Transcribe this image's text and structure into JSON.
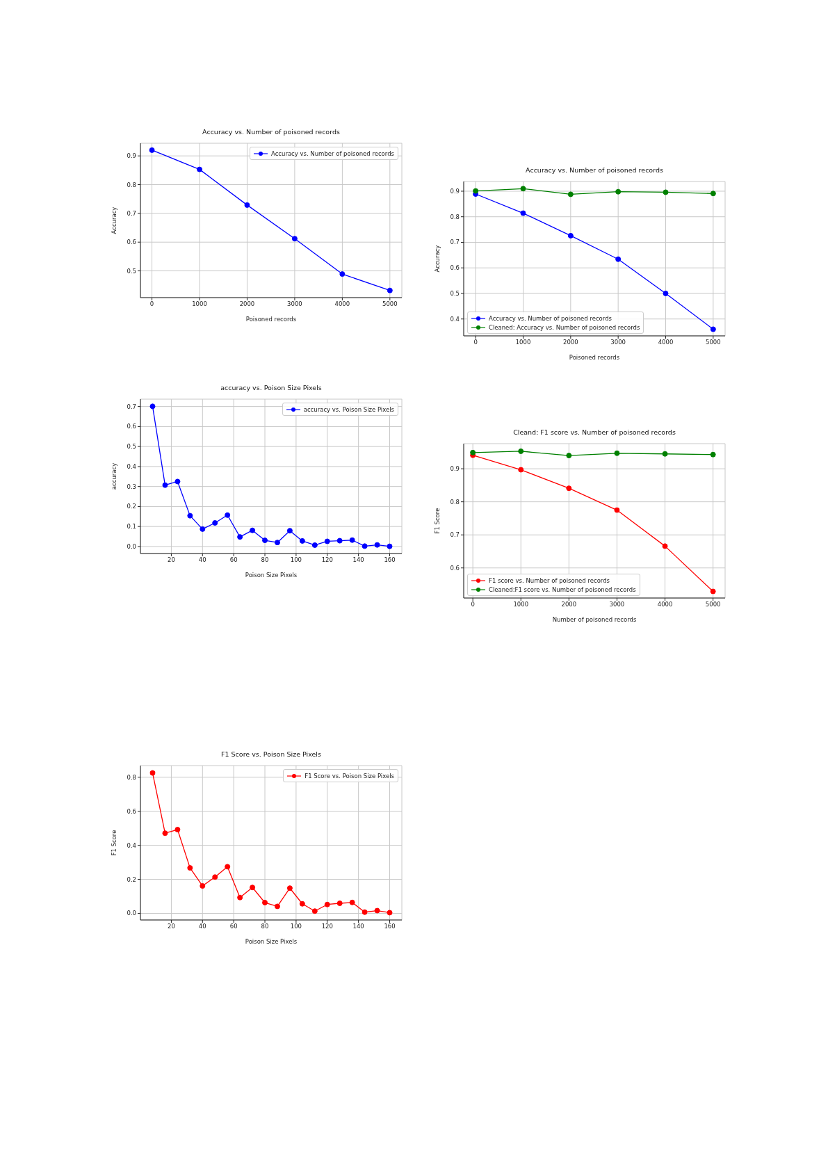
{
  "chart_data": [
    {
      "type": "line",
      "title": "Accuracy vs. Number of poisoned records",
      "xlabel": "Poisoned records",
      "ylabel": "Accuracy",
      "x": [
        0,
        1000,
        2000,
        3000,
        4000,
        5000
      ],
      "series": [
        {
          "name": "Accuracy vs. Number of poisoned records",
          "color": "#0000ff",
          "values": [
            0.92,
            0.853,
            0.729,
            0.612,
            0.489,
            0.432
          ]
        }
      ],
      "xlim": [
        -242,
        5251
      ],
      "xticks": [
        0,
        1000,
        2000,
        3000,
        4000,
        5000
      ],
      "ylim": [
        0.407,
        0.944
      ],
      "yticks": [
        0.5,
        0.6,
        0.7,
        0.8,
        0.9
      ],
      "grid": true,
      "legend": "top right",
      "marker": "circle"
    },
    {
      "type": "line",
      "title": "Accuracy vs. Number of poisoned records",
      "xlabel": "Poisoned records",
      "ylabel": "Accuracy",
      "x": [
        0,
        1000,
        2000,
        3000,
        4000,
        5000
      ],
      "series": [
        {
          "name": "Accuracy vs. Number of poisoned records",
          "color": "#0000ff",
          "values": [
            0.889,
            0.814,
            0.726,
            0.634,
            0.5,
            0.36
          ]
        },
        {
          "name": "Cleaned: Accuracy vs. Number of poisoned records",
          "color": "#008000",
          "values": [
            0.901,
            0.91,
            0.888,
            0.898,
            0.896,
            0.891
          ]
        }
      ],
      "xlim": [
        -251,
        5251
      ],
      "xticks": [
        0,
        1000,
        2000,
        3000,
        4000,
        5000
      ],
      "ylim": [
        0.334,
        0.938
      ],
      "yticks": [
        0.4,
        0.5,
        0.6,
        0.7,
        0.8,
        0.9
      ],
      "grid": true,
      "legend": "bottom left",
      "marker": "circle"
    },
    {
      "type": "line",
      "title": "accuracy vs. Poison Size Pixels",
      "xlabel": "Poison Size Pixels",
      "ylabel": "accuracy",
      "x": [
        8,
        16,
        24,
        32,
        40,
        48,
        56,
        64,
        72,
        80,
        88,
        96,
        104,
        112,
        120,
        128,
        136,
        144,
        152,
        160
      ],
      "series": [
        {
          "name": "accuracy vs. Poison Size Pixels",
          "color": "#0000ff",
          "values": [
            0.701,
            0.307,
            0.325,
            0.154,
            0.087,
            0.118,
            0.157,
            0.048,
            0.081,
            0.031,
            0.02,
            0.079,
            0.028,
            0.007,
            0.026,
            0.029,
            0.032,
            0.002,
            0.008,
            0.001
          ]
        }
      ],
      "xlim": [
        0.2,
        167.8
      ],
      "xticks": [
        20,
        40,
        60,
        80,
        100,
        120,
        140,
        160
      ],
      "ylim": [
        -0.035,
        0.737
      ],
      "yticks": [
        {
          "value": 0,
          "label": "0.0"
        },
        0.1,
        0.2,
        0.3,
        0.4,
        0.5,
        0.6,
        0.7
      ],
      "grid": true,
      "legend": "top right",
      "marker": "circle"
    },
    {
      "type": "line",
      "title": "Cleand: F1 score vs. Number of poisoned records",
      "xlabel": "Number of poisoned records",
      "ylabel": "F1 Score",
      "x": [
        0,
        1000,
        2000,
        3000,
        4000,
        5000
      ],
      "series": [
        {
          "name": "F1 score vs. Number of poisoned records",
          "color": "#ff0000",
          "values": [
            0.941,
            0.897,
            0.841,
            0.775,
            0.666,
            0.529
          ]
        },
        {
          "name": "Cleaned:F1 score vs. Number of poisoned records",
          "color": "#008000",
          "values": [
            0.949,
            0.953,
            0.94,
            0.947,
            0.945,
            0.943
          ]
        }
      ],
      "xlim": [
        -190,
        5251
      ],
      "xticks": [
        0,
        1000,
        2000,
        3000,
        4000,
        5000
      ],
      "ylim": [
        0.509,
        0.976
      ],
      "yticks": [
        0.6,
        0.7,
        0.8,
        0.9
      ],
      "grid": true,
      "legend": "bottom left",
      "marker": "circle"
    },
    {
      "type": "line",
      "title": "F1 Score vs. Poison Size Pixels",
      "xlabel": "Poison Size Pixels",
      "ylabel": "F1 Score",
      "x": [
        8,
        16,
        24,
        32,
        40,
        48,
        56,
        64,
        72,
        80,
        88,
        96,
        104,
        112,
        120,
        128,
        136,
        144,
        152,
        160
      ],
      "series": [
        {
          "name": "F1 Score vs. Poison Size Pixels",
          "color": "#ff0000",
          "values": [
            0.825,
            0.471,
            0.492,
            0.267,
            0.161,
            0.213,
            0.274,
            0.093,
            0.152,
            0.063,
            0.041,
            0.148,
            0.056,
            0.013,
            0.052,
            0.059,
            0.064,
            0.007,
            0.016,
            0.004
          ]
        }
      ],
      "xlim": [
        0.2,
        167.8
      ],
      "xticks": [
        20,
        40,
        60,
        80,
        100,
        120,
        140,
        160
      ],
      "ylim": [
        -0.039,
        0.868
      ],
      "yticks": [
        {
          "value": 0,
          "label": "0.0"
        },
        0.2,
        0.4,
        0.6,
        0.8
      ],
      "grid": true,
      "legend": "top right",
      "marker": "circle"
    }
  ]
}
